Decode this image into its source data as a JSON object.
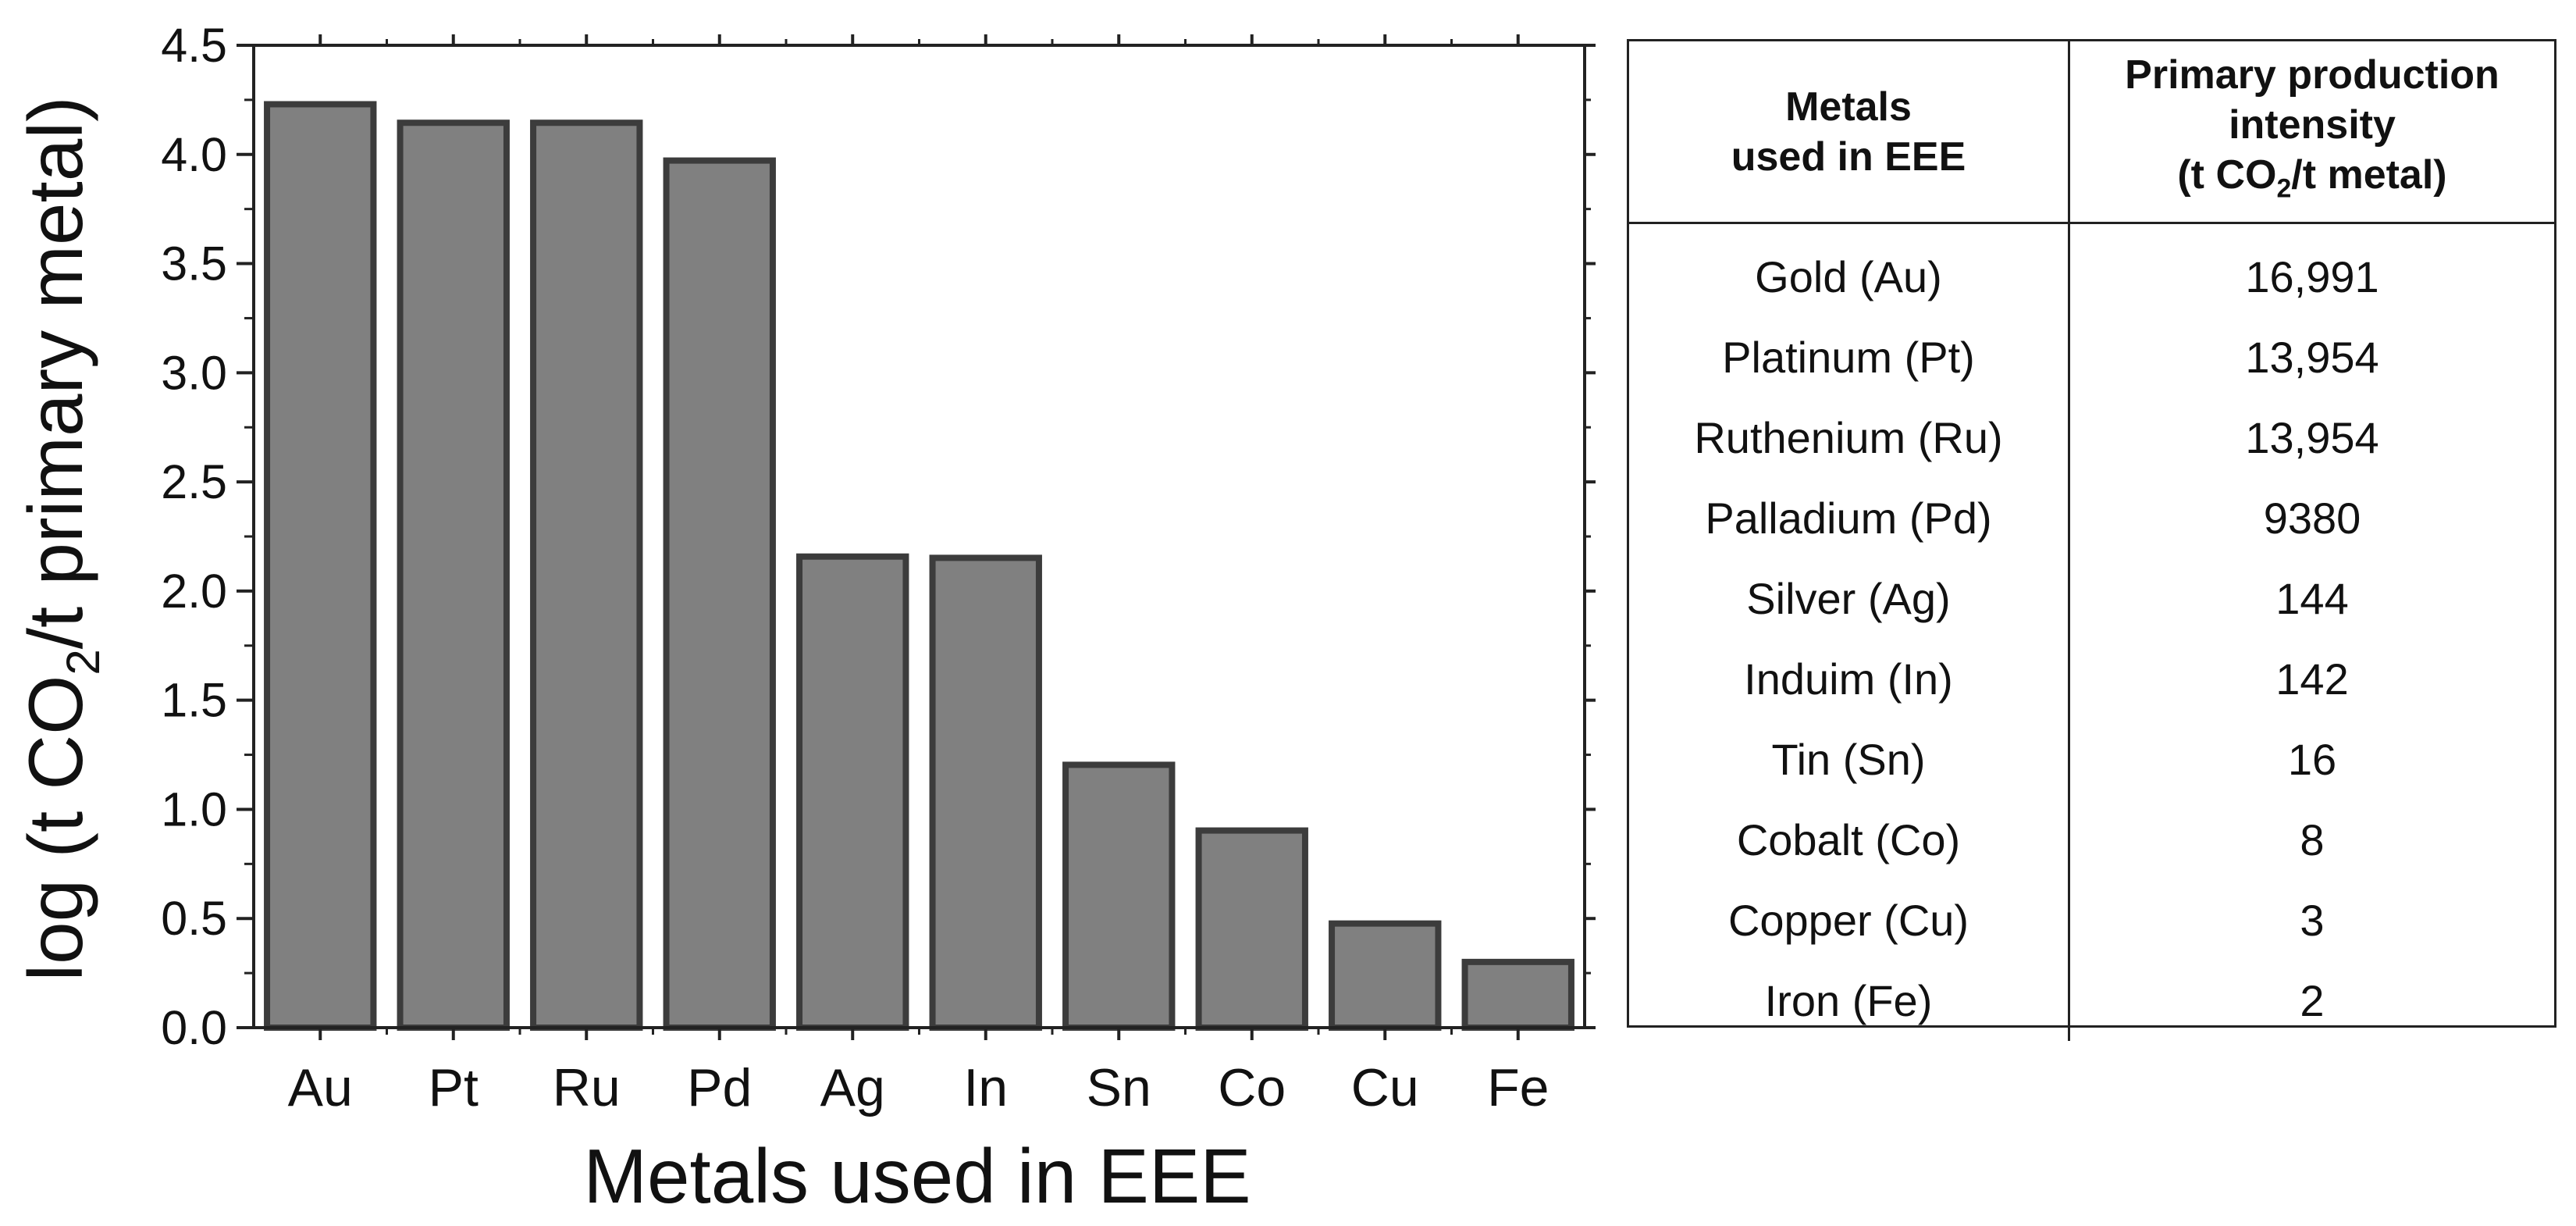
{
  "chart_data": {
    "type": "bar",
    "categories": [
      "Au",
      "Pt",
      "Ru",
      "Pd",
      "Ag",
      "In",
      "Sn",
      "Co",
      "Cu",
      "Fe"
    ],
    "values": [
      4.23,
      4.145,
      4.145,
      3.972,
      2.158,
      2.152,
      1.204,
      0.903,
      0.477,
      0.301
    ],
    "xlabel": "Metals used in EEE",
    "ylabel_parts": {
      "pre": "log (t CO",
      "sub": "2",
      "post": "/t primary metal)"
    },
    "ylim": [
      0,
      4.5
    ],
    "y_ticks": [
      "0.0",
      "0.5",
      "1.0",
      "1.5",
      "2.0",
      "2.5",
      "3.0",
      "3.5",
      "4.0",
      "4.5"
    ],
    "y_minor_step": 0.25,
    "grid": false,
    "legend": "none",
    "bar_color": "#808080",
    "bar_edge_color": "#3c3c3c"
  },
  "table": {
    "headers": {
      "col1": [
        "Metals",
        "used in EEE"
      ],
      "col2": [
        "Primary production",
        "intensity"
      ],
      "col2_unit": {
        "pre": "(t CO",
        "sub": "2",
        "post": "/t metal)"
      }
    },
    "rows": [
      {
        "metal": "Gold (Au)",
        "intensity": "16,991"
      },
      {
        "metal": "Platinum (Pt)",
        "intensity": "13,954"
      },
      {
        "metal": "Ruthenium (Ru)",
        "intensity": "13,954"
      },
      {
        "metal": "Palladium (Pd)",
        "intensity": "9380"
      },
      {
        "metal": "Silver (Ag)",
        "intensity": "144"
      },
      {
        "metal": "Induim (In)",
        "intensity": "142"
      },
      {
        "metal": "Tin (Sn)",
        "intensity": "16"
      },
      {
        "metal": "Cobalt (Co)",
        "intensity": "8"
      },
      {
        "metal": "Copper (Cu)",
        "intensity": "3"
      },
      {
        "metal": "Iron (Fe)",
        "intensity": "2"
      }
    ]
  }
}
